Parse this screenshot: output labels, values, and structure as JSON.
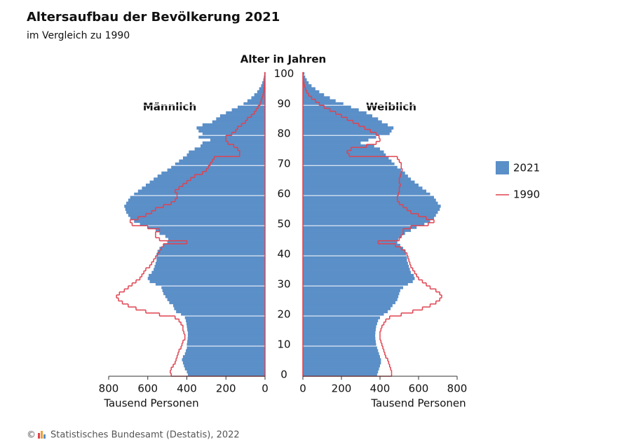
{
  "chart_data": {
    "type": "pyramid",
    "title": "Altersaufbau der Bevölkerung 2021",
    "subtitle": "im Vergleich zu 1990",
    "y_label": "Alter in Jahren",
    "x_label": "Tausend Personen",
    "left_label": "Männlich",
    "right_label": "Weiblich",
    "source_symbol": "©",
    "source": "Statistisches Bundesamt (Destatis), 2022",
    "ylim": [
      0,
      101
    ],
    "yticks": [
      0,
      10,
      20,
      30,
      40,
      50,
      60,
      70,
      80,
      90,
      100
    ],
    "xlim": [
      0,
      800
    ],
    "xticks": [
      0,
      200,
      400,
      600,
      800
    ],
    "grid": true,
    "legend": "right",
    "series": [
      {
        "name": "2021",
        "color": "#5b8fc8",
        "style": "bar",
        "male": [
          395,
          400,
          410,
          415,
          420,
          425,
          420,
          410,
          405,
          400,
          400,
          398,
          396,
          395,
          395,
          398,
          400,
          402,
          405,
          410,
          430,
          455,
          465,
          470,
          490,
          500,
          510,
          520,
          525,
          530,
          560,
          590,
          600,
          595,
          580,
          570,
          565,
          560,
          555,
          555,
          555,
          550,
          540,
          520,
          500,
          495,
          510,
          540,
          560,
          600,
          640,
          670,
          690,
          700,
          710,
          715,
          720,
          710,
          700,
          690,
          670,
          650,
          630,
          610,
          590,
          570,
          550,
          530,
          500,
          480,
          460,
          440,
          420,
          400,
          390,
          360,
          330,
          320,
          280,
          340,
          320,
          340,
          350,
          320,
          270,
          250,
          230,
          200,
          170,
          140,
          110,
          90,
          70,
          55,
          40,
          30,
          20,
          14,
          9,
          6,
          4
        ],
        "female": [
          385,
          390,
          395,
          400,
          405,
          405,
          400,
          395,
          390,
          385,
          380,
          378,
          376,
          375,
          376,
          378,
          380,
          385,
          390,
          400,
          420,
          440,
          455,
          465,
          480,
          490,
          495,
          500,
          505,
          520,
          545,
          570,
          580,
          575,
          560,
          555,
          550,
          545,
          540,
          540,
          535,
          530,
          520,
          505,
          490,
          495,
          510,
          530,
          560,
          590,
          630,
          660,
          680,
          690,
          700,
          710,
          715,
          700,
          690,
          680,
          660,
          640,
          620,
          600,
          580,
          560,
          545,
          530,
          510,
          490,
          475,
          460,
          445,
          430,
          420,
          400,
          370,
          300,
          340,
          380,
          450,
          460,
          470,
          440,
          410,
          390,
          360,
          330,
          290,
          250,
          210,
          170,
          140,
          110,
          85,
          65,
          45,
          30,
          20,
          12,
          8
        ]
      },
      {
        "name": "1990",
        "color": "#e0424f",
        "style": "step",
        "male": [
          480,
          485,
          480,
          470,
          460,
          455,
          450,
          445,
          440,
          430,
          425,
          420,
          410,
          410,
          415,
          420,
          420,
          430,
          440,
          460,
          540,
          610,
          660,
          700,
          730,
          750,
          760,
          745,
          720,
          700,
          680,
          660,
          640,
          630,
          620,
          610,
          590,
          580,
          570,
          560,
          550,
          540,
          530,
          520,
          400,
          540,
          560,
          560,
          540,
          600,
          680,
          690,
          650,
          610,
          580,
          560,
          520,
          480,
          460,
          450,
          450,
          460,
          440,
          420,
          400,
          380,
          360,
          320,
          300,
          290,
          280,
          270,
          260,
          130,
          130,
          140,
          160,
          190,
          200,
          200,
          170,
          150,
          140,
          120,
          100,
          90,
          70,
          55,
          45,
          35,
          25,
          20,
          15,
          10,
          7,
          5,
          3,
          2,
          1,
          1,
          1
        ],
        "female": [
          460,
          460,
          455,
          450,
          445,
          440,
          430,
          425,
          420,
          415,
          410,
          405,
          400,
          400,
          400,
          405,
          410,
          420,
          430,
          450,
          510,
          570,
          620,
          660,
          690,
          710,
          720,
          710,
          690,
          660,
          640,
          620,
          600,
          590,
          580,
          570,
          560,
          555,
          550,
          545,
          540,
          530,
          510,
          480,
          390,
          500,
          510,
          520,
          520,
          560,
          650,
          680,
          640,
          600,
          560,
          540,
          520,
          500,
          490,
          490,
          495,
          500,
          500,
          505,
          500,
          500,
          505,
          510,
          515,
          510,
          510,
          500,
          490,
          240,
          230,
          250,
          330,
          380,
          400,
          395,
          380,
          350,
          320,
          290,
          260,
          230,
          200,
          170,
          140,
          110,
          85,
          65,
          45,
          30,
          20,
          13,
          8,
          5,
          3,
          2,
          1
        ]
      }
    ]
  }
}
